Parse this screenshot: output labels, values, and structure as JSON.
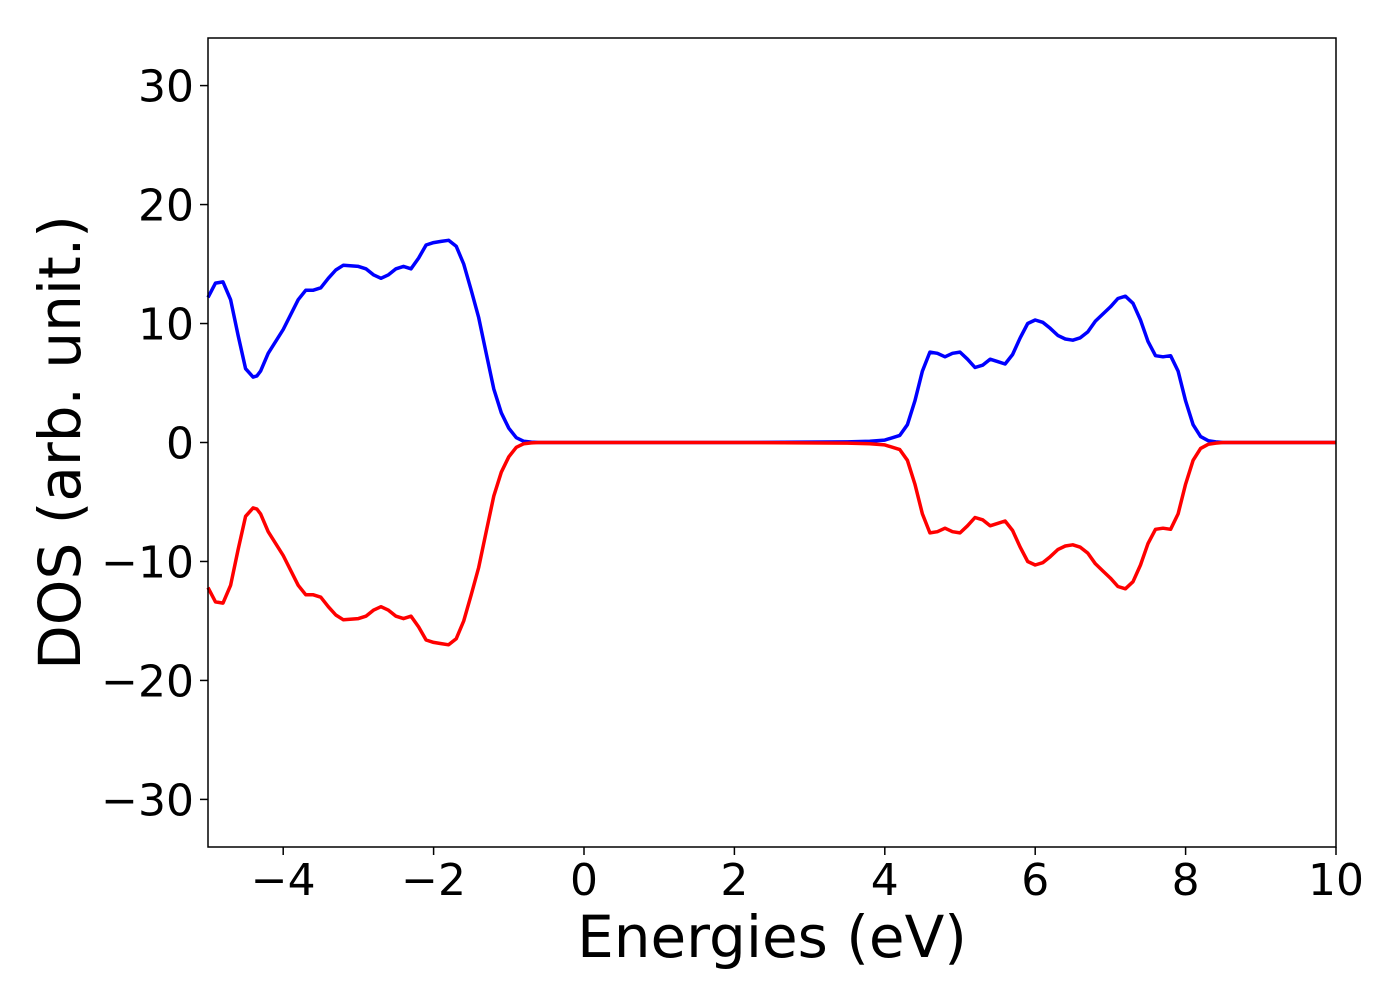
{
  "chart_data": {
    "type": "line",
    "title": "",
    "xlabel": "Energies (eV)",
    "ylabel": "DOS (arb. unit.)",
    "xlim": [
      -5,
      10
    ],
    "ylim": [
      -34,
      34
    ],
    "grid": false,
    "legend": "none",
    "xticks": [
      -4,
      -2,
      0,
      2,
      4,
      6,
      8,
      10
    ],
    "yticks": [
      -30,
      -20,
      -10,
      0,
      10,
      20,
      30
    ],
    "xtick_labels": [
      "−4",
      "−2",
      "0",
      "2",
      "4",
      "6",
      "8",
      "10"
    ],
    "ytick_labels": [
      "−30",
      "−20",
      "−10",
      "0",
      "10",
      "20",
      "30"
    ],
    "series": [
      {
        "color": "#0000ff",
        "x": [
          -5.0,
          -4.9,
          -4.8,
          -4.7,
          -4.6,
          -4.5,
          -4.4,
          -4.35,
          -4.3,
          -4.2,
          -4.0,
          -3.8,
          -3.7,
          -3.6,
          -3.5,
          -3.4,
          -3.3,
          -3.2,
          -3.0,
          -2.9,
          -2.8,
          -2.7,
          -2.6,
          -2.5,
          -2.4,
          -2.3,
          -2.2,
          -2.1,
          -2.0,
          -1.9,
          -1.8,
          -1.7,
          -1.6,
          -1.5,
          -1.4,
          -1.3,
          -1.2,
          -1.1,
          -1.0,
          -0.9,
          -0.8,
          -0.7,
          -0.6,
          -0.5,
          0.0,
          2.0,
          3.5,
          3.8,
          4.0,
          4.2,
          4.3,
          4.4,
          4.5,
          4.6,
          4.7,
          4.8,
          4.9,
          5.0,
          5.1,
          5.2,
          5.3,
          5.4,
          5.5,
          5.6,
          5.7,
          5.8,
          5.9,
          6.0,
          6.1,
          6.2,
          6.3,
          6.4,
          6.5,
          6.6,
          6.7,
          6.8,
          6.9,
          7.0,
          7.1,
          7.2,
          7.3,
          7.4,
          7.5,
          7.6,
          7.7,
          7.8,
          7.9,
          8.0,
          8.1,
          8.2,
          8.3,
          8.4,
          8.5,
          8.6,
          8.8,
          9.0,
          10.0
        ],
        "values": [
          12.2,
          13.4,
          13.5,
          12.0,
          9.0,
          6.2,
          5.5,
          5.6,
          6.0,
          7.5,
          9.5,
          12.0,
          12.8,
          12.8,
          13.0,
          13.8,
          14.5,
          14.9,
          14.8,
          14.6,
          14.1,
          13.8,
          14.1,
          14.6,
          14.8,
          14.6,
          15.5,
          16.6,
          16.8,
          16.9,
          17.0,
          16.5,
          15.0,
          12.8,
          10.5,
          7.5,
          4.5,
          2.5,
          1.2,
          0.4,
          0.1,
          0.03,
          0.0,
          0.0,
          0.0,
          0.0,
          0.05,
          0.1,
          0.2,
          0.6,
          1.5,
          3.5,
          6.0,
          7.6,
          7.5,
          7.2,
          7.5,
          7.6,
          7.0,
          6.3,
          6.5,
          7.0,
          6.8,
          6.6,
          7.4,
          8.8,
          10.0,
          10.3,
          10.1,
          9.6,
          9.0,
          8.7,
          8.6,
          8.8,
          9.3,
          10.2,
          10.8,
          11.4,
          12.1,
          12.3,
          11.7,
          10.3,
          8.5,
          7.3,
          7.2,
          7.3,
          6.0,
          3.5,
          1.5,
          0.5,
          0.15,
          0.05,
          0.0,
          0.0,
          0.0,
          0.0,
          0.0
        ]
      },
      {
        "color": "#ff0000",
        "x": [
          -5.0,
          -4.9,
          -4.8,
          -4.7,
          -4.6,
          -4.5,
          -4.4,
          -4.35,
          -4.3,
          -4.2,
          -4.0,
          -3.8,
          -3.7,
          -3.6,
          -3.5,
          -3.4,
          -3.3,
          -3.2,
          -3.0,
          -2.9,
          -2.8,
          -2.7,
          -2.6,
          -2.5,
          -2.4,
          -2.3,
          -2.2,
          -2.1,
          -2.0,
          -1.9,
          -1.8,
          -1.7,
          -1.6,
          -1.5,
          -1.4,
          -1.3,
          -1.2,
          -1.1,
          -1.0,
          -0.9,
          -0.8,
          -0.7,
          -0.6,
          -0.5,
          0.0,
          2.0,
          3.5,
          3.8,
          4.0,
          4.2,
          4.3,
          4.4,
          4.5,
          4.6,
          4.7,
          4.8,
          4.9,
          5.0,
          5.1,
          5.2,
          5.3,
          5.4,
          5.5,
          5.6,
          5.7,
          5.8,
          5.9,
          6.0,
          6.1,
          6.2,
          6.3,
          6.4,
          6.5,
          6.6,
          6.7,
          6.8,
          6.9,
          7.0,
          7.1,
          7.2,
          7.3,
          7.4,
          7.5,
          7.6,
          7.7,
          7.8,
          7.9,
          8.0,
          8.1,
          8.2,
          8.3,
          8.4,
          8.5,
          8.6,
          8.8,
          9.0,
          10.0
        ],
        "values": [
          -12.2,
          -13.4,
          -13.5,
          -12.0,
          -9.0,
          -6.2,
          -5.5,
          -5.6,
          -6.0,
          -7.5,
          -9.5,
          -12.0,
          -12.8,
          -12.8,
          -13.0,
          -13.8,
          -14.5,
          -14.9,
          -14.8,
          -14.6,
          -14.1,
          -13.8,
          -14.1,
          -14.6,
          -14.8,
          -14.6,
          -15.5,
          -16.6,
          -16.8,
          -16.9,
          -17.0,
          -16.5,
          -15.0,
          -12.8,
          -10.5,
          -7.5,
          -4.5,
          -2.5,
          -1.2,
          -0.4,
          -0.1,
          -0.03,
          0.0,
          0.0,
          0.0,
          0.0,
          -0.05,
          -0.1,
          -0.2,
          -0.6,
          -1.5,
          -3.5,
          -6.0,
          -7.6,
          -7.5,
          -7.2,
          -7.5,
          -7.6,
          -7.0,
          -6.3,
          -6.5,
          -7.0,
          -6.8,
          -6.6,
          -7.4,
          -8.8,
          -10.0,
          -10.3,
          -10.1,
          -9.6,
          -9.0,
          -8.7,
          -8.6,
          -8.8,
          -9.3,
          -10.2,
          -10.8,
          -11.4,
          -12.1,
          -12.3,
          -11.7,
          -10.3,
          -8.5,
          -7.3,
          -7.2,
          -7.3,
          -6.0,
          -3.5,
          -1.5,
          -0.5,
          -0.15,
          -0.05,
          0.0,
          0.0,
          0.0,
          0.0,
          0.0
        ]
      }
    ]
  }
}
